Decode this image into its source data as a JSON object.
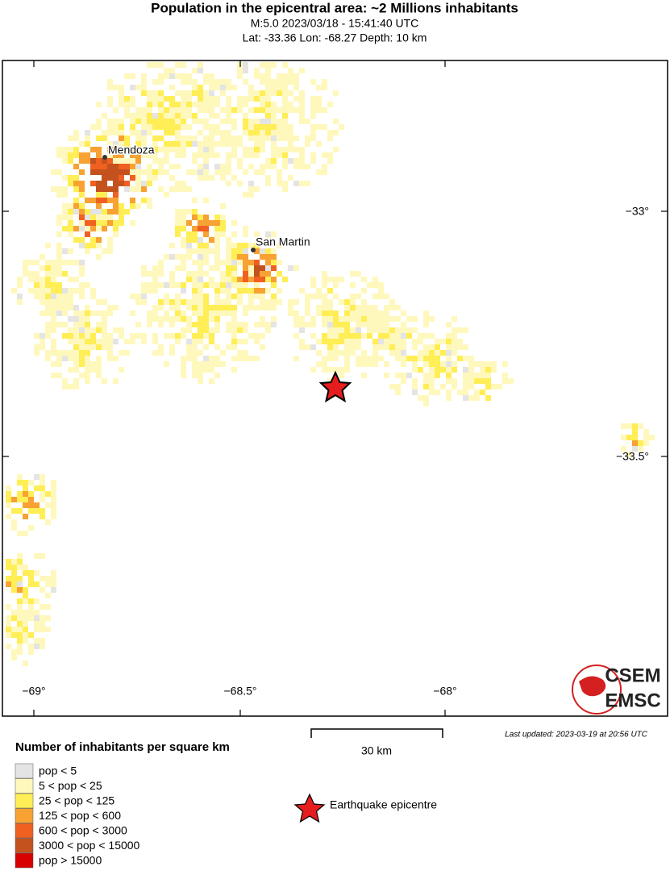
{
  "header": {
    "title": "Population in the epicentral area: ~2 Millions inhabitants",
    "line1": "M:5.0 2023/03/18 - 15:41:40 UTC",
    "line2": "Lat: -33.36 Lon: -68.27 Depth: 10 km"
  },
  "map": {
    "places": [
      {
        "label": "Mendoza"
      },
      {
        "label": "San Martin"
      }
    ],
    "lon_ticks": [
      "−69°",
      "−68.5°",
      "−68°"
    ],
    "lat_ticks": [
      "−33°",
      "−33.5°"
    ],
    "logo": [
      "CSEM",
      "EMSC"
    ]
  },
  "footer": {
    "last_updated": "Last updated: 2023-03-19 at 20:56 UTC",
    "scale": "30 km",
    "legend_title": "Number of inhabitants per square km",
    "legend": [
      {
        "label": "pop < 5",
        "color": "#e4e4e4"
      },
      {
        "label": "5 < pop < 25",
        "color": "#fff8bd"
      },
      {
        "label": "25 < pop < 125",
        "color": "#ffee55"
      },
      {
        "label": "125 < pop < 600",
        "color": "#f7a233"
      },
      {
        "label": "600 < pop < 3000",
        "color": "#f06020"
      },
      {
        "label": "3000 < pop < 15000",
        "color": "#c4521e"
      },
      {
        "label": "pop > 15000",
        "color": "#d80000"
      }
    ],
    "epicentre": "Earthquake epicentre"
  }
}
